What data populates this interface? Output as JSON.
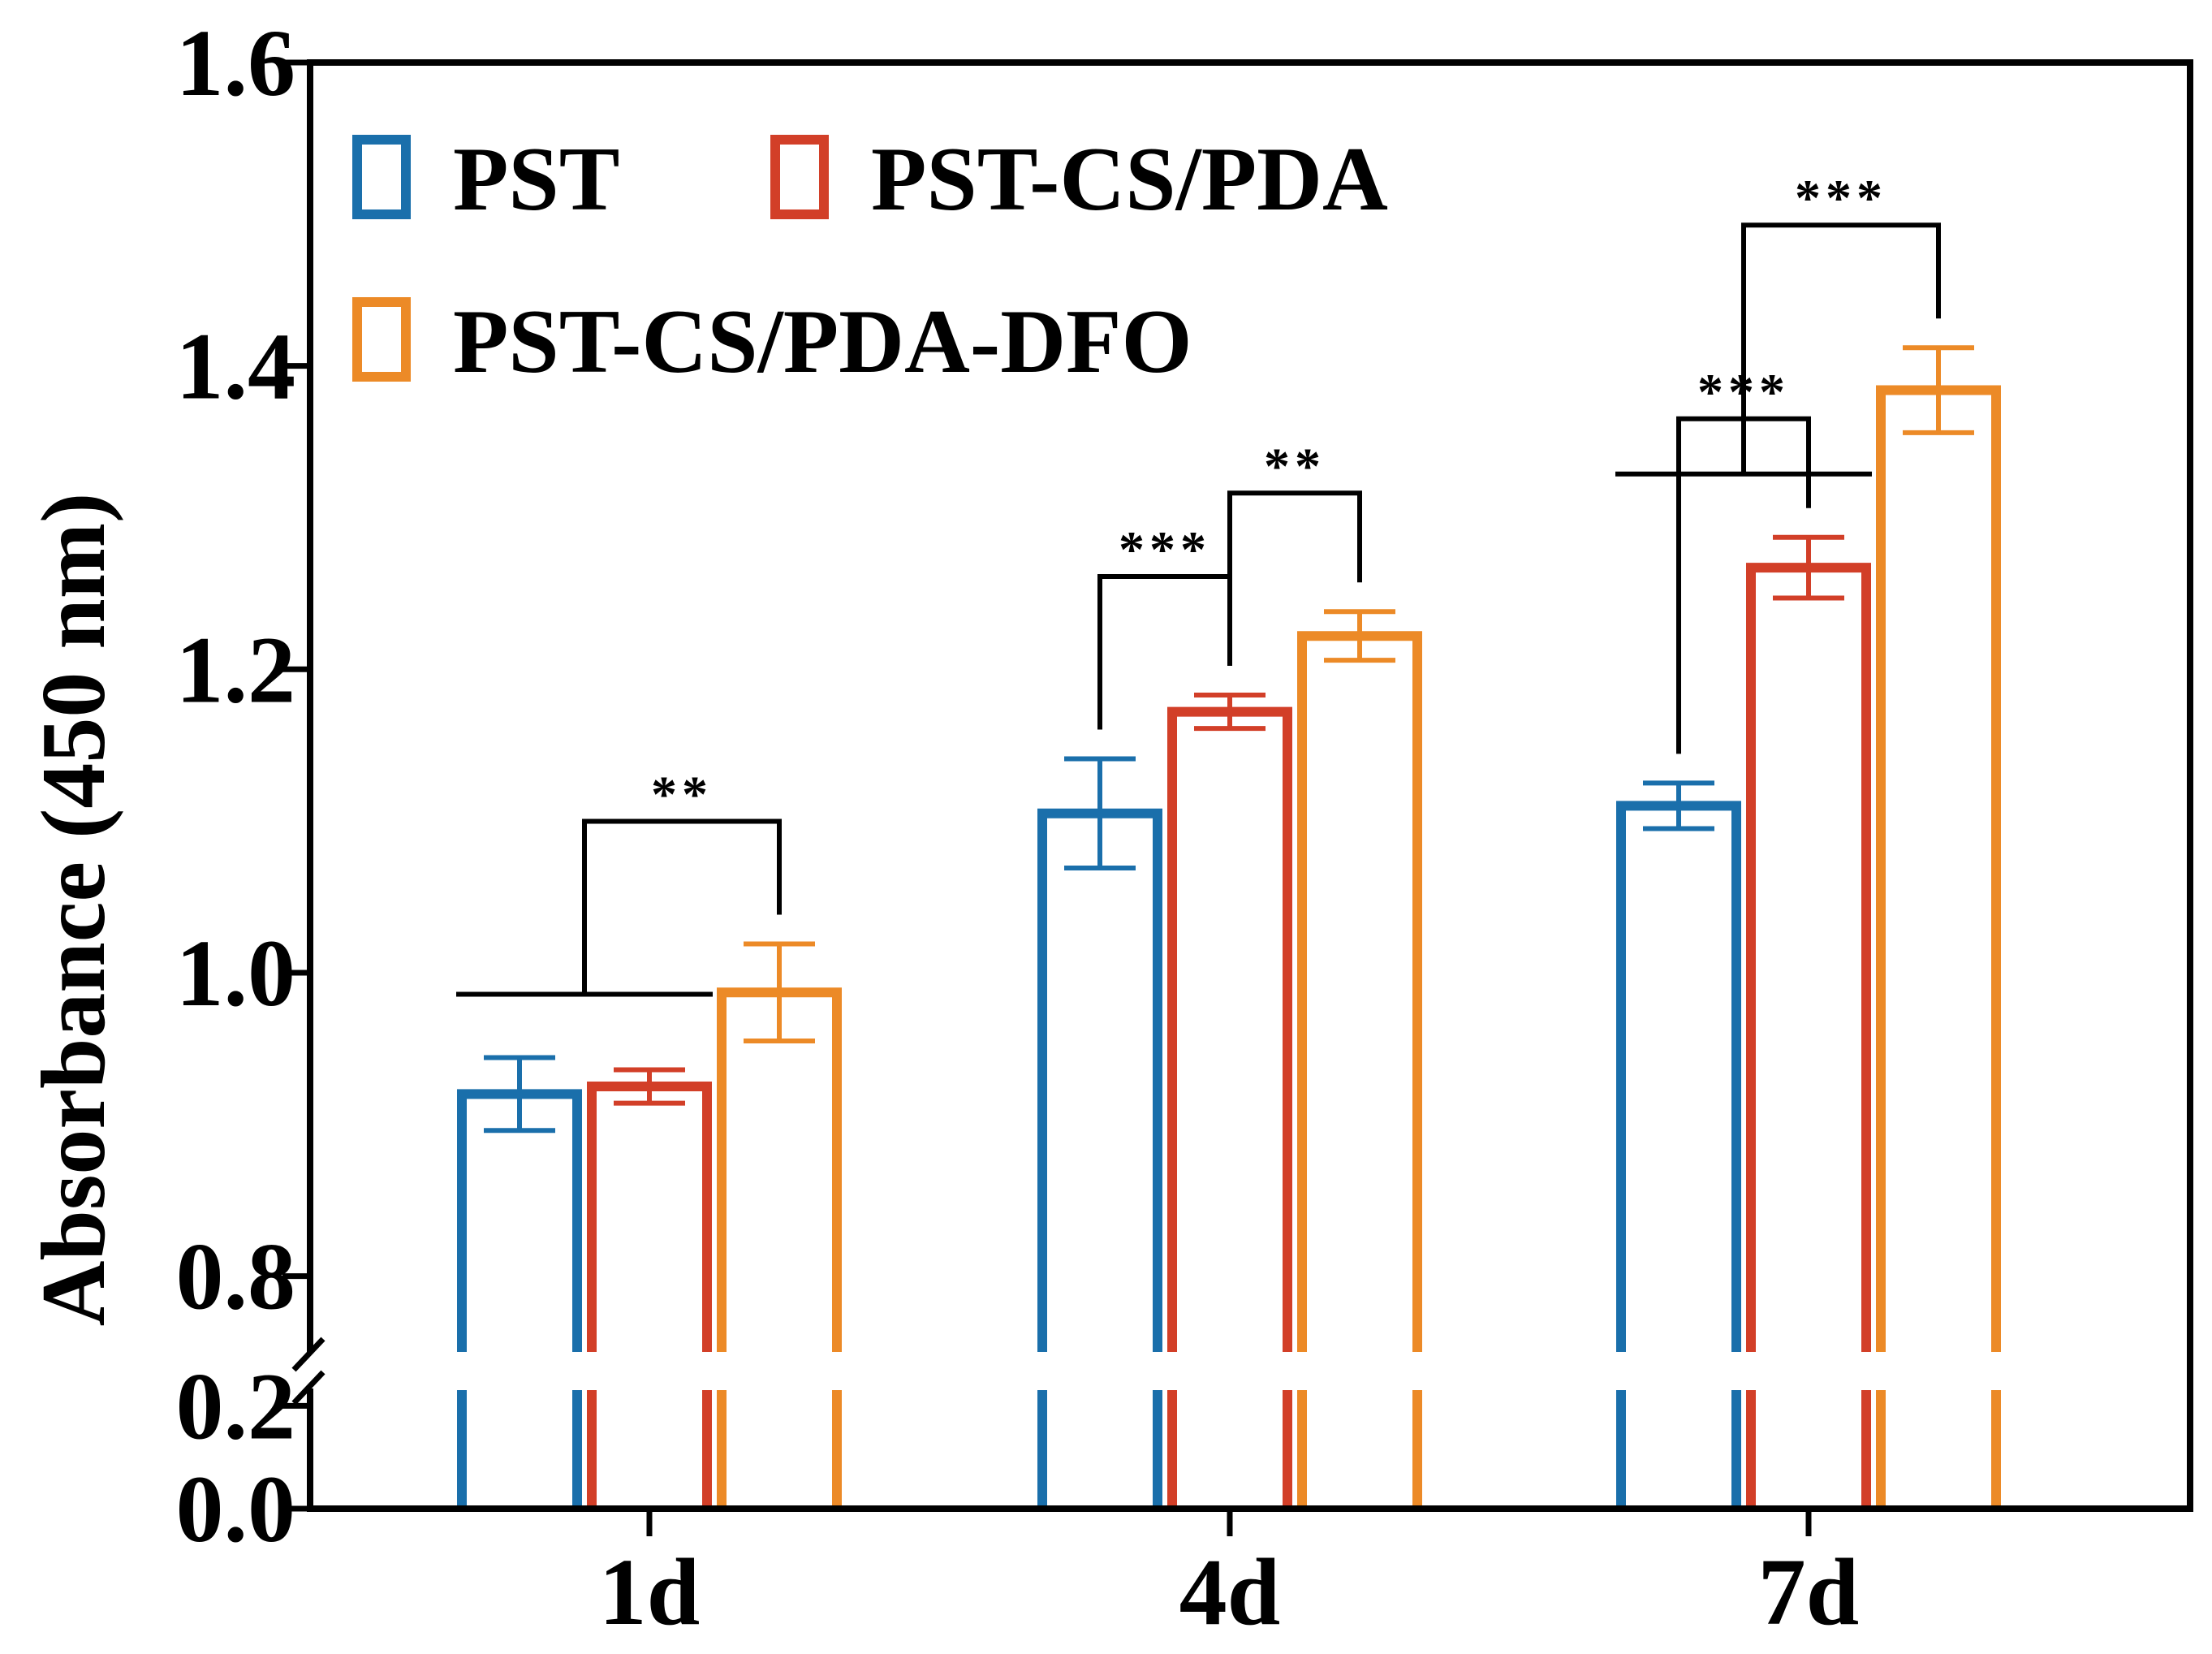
{
  "chart_data": {
    "type": "bar",
    "title": "",
    "xlabel": "",
    "ylabel": "Absorbance (450 nm)",
    "categories": [
      "1d",
      "4d",
      "7d"
    ],
    "y_axis": {
      "broken": true,
      "lower_segment": [
        0.0,
        0.3
      ],
      "upper_segment": [
        0.75,
        1.6
      ],
      "ticks": [
        "0.0",
        "0.2",
        "0.8",
        "1.0",
        "1.2",
        "1.4",
        "1.6"
      ]
    },
    "series": [
      {
        "name": "PST",
        "color": "#1a6fab",
        "values": [
          0.92,
          1.105,
          1.11
        ],
        "errors": [
          0.024,
          0.036,
          0.015
        ]
      },
      {
        "name": "PST-CS/PDA",
        "color": "#d23f28",
        "values": [
          0.925,
          1.172,
          1.267
        ],
        "errors": [
          0.011,
          0.011,
          0.02
        ]
      },
      {
        "name": "PST-CS/PDA-DFO",
        "color": "#ec8a27",
        "values": [
          0.987,
          1.222,
          1.384
        ],
        "errors": [
          0.032,
          0.016,
          0.028
        ]
      }
    ],
    "legend_placement": "top-left",
    "annotations": [
      {
        "category": 0,
        "from": "group",
        "group": [
          0,
          1
        ],
        "to": 2,
        "label": "**"
      },
      {
        "category": 1,
        "from": 0,
        "to": 1,
        "label": "***"
      },
      {
        "category": 1,
        "from": 1,
        "to": 2,
        "label": "**"
      },
      {
        "category": 2,
        "from": 0,
        "to": 1,
        "label": "***"
      },
      {
        "category": 2,
        "from": "group",
        "group": [
          0,
          1
        ],
        "to": 2,
        "label": "***"
      }
    ]
  }
}
